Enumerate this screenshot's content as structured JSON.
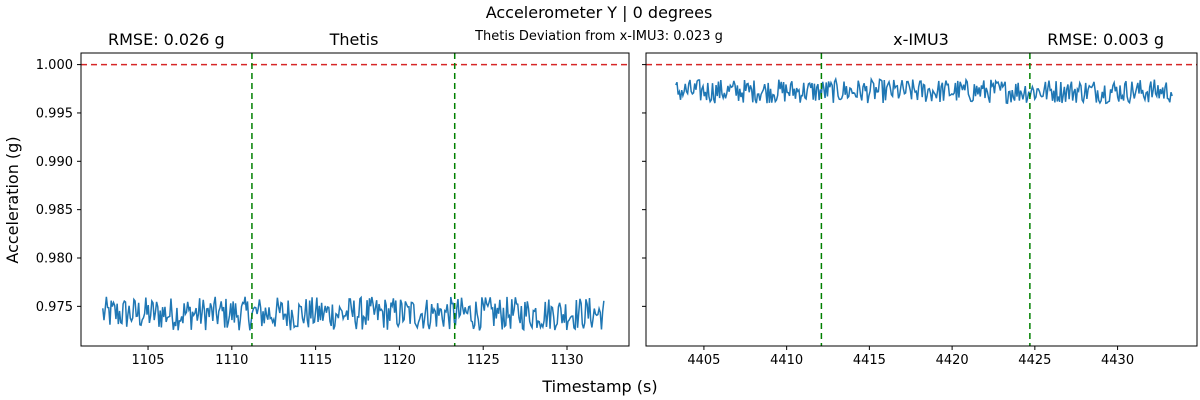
{
  "figure": {
    "suptitle": "Accelerometer Y | 0 degrees",
    "deviation_text": "Thetis Deviation from x-IMU3: 0.023 g",
    "xlabel": "Timestamp (s)",
    "ylabel": "Acceleration (g)"
  },
  "colors": {
    "series": "#1f77b4",
    "reference_line": "#d62728",
    "window_lines": "#008000",
    "rmse_text": "#0000ff"
  },
  "chart_data": [
    {
      "type": "line",
      "title": "Thetis",
      "rmse_label": "RMSE: 0.026 g",
      "rmse_position": "top-left",
      "xlim": [
        1101,
        1133.7
      ],
      "ylim": [
        0.9709,
        1.0012
      ],
      "xticks": [
        1105,
        1110,
        1115,
        1120,
        1125,
        1130
      ],
      "yticks": [
        0.975,
        0.98,
        0.985,
        0.99,
        0.995,
        1.0
      ],
      "ytick_labels": [
        "0.975",
        "0.980",
        "0.985",
        "0.990",
        "0.995",
        "1.000"
      ],
      "reference_y": 1.0,
      "window_x": [
        1111.2,
        1123.3
      ],
      "series": [
        {
          "x_start": 1102.3,
          "x_end": 1132.2,
          "mean": 0.9742,
          "band_low": 0.9725,
          "band_high": 0.976,
          "samples": 420
        }
      ]
    },
    {
      "type": "line",
      "title": "x-IMU3",
      "rmse_label": "RMSE: 0.003 g",
      "rmse_position": "top-right",
      "xlim": [
        4401.5,
        4434.8
      ],
      "ylim": [
        0.9709,
        1.0012
      ],
      "xticks": [
        4405,
        4410,
        4415,
        4420,
        4425,
        4430
      ],
      "yticks": [
        0.975,
        0.98,
        0.985,
        0.99,
        0.995,
        1.0
      ],
      "reference_y": 1.0,
      "window_x": [
        4412.1,
        4424.7
      ],
      "series": [
        {
          "x_start": 4403.3,
          "x_end": 4433.3,
          "mean": 0.99725,
          "band_low": 0.996,
          "band_high": 0.9985,
          "samples": 420
        }
      ]
    }
  ]
}
